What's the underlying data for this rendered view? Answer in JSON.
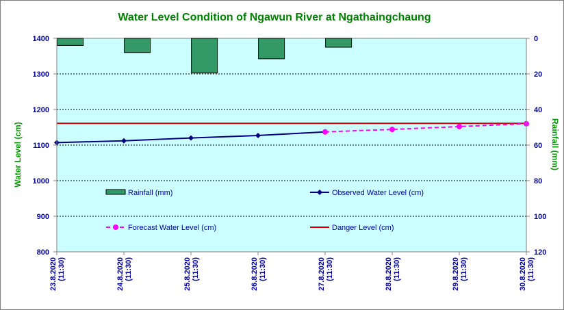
{
  "chart_data": {
    "type": "bar+line",
    "title": "Water Level Condition  of Ngawun River at  Ngathaingchaung",
    "ylabel_left": "Water Level (cm)",
    "ylabel_right": "Rainfall (mm)",
    "ylim_left": [
      800,
      1400
    ],
    "yticks_left": [
      "800",
      "900",
      "1000",
      "1100",
      "1200",
      "1300",
      "1400"
    ],
    "ylim_right_inverted": [
      0,
      120
    ],
    "yticks_right": [
      "0",
      "20",
      "40",
      "60",
      "80",
      "100",
      "120"
    ],
    "categories": [
      "23.8.2020\n(11:30)",
      "24.8.2020\n(11:30)",
      "25.8.2020\n(11:30)",
      "26.8.2020\n(11:30)",
      "27.8.2020\n(11:30)",
      "28.8.2020\n(11:30)",
      "29.8.2020\n(11:30)",
      "30.8.2020\n(11:30)"
    ],
    "grid": true,
    "series": [
      {
        "name": "Rainfall (mm)",
        "kind": "bar",
        "axis": "right",
        "color": "#339966",
        "values": [
          4,
          8,
          19.5,
          11.5,
          5,
          null,
          null,
          null
        ]
      },
      {
        "name": "Observed Water Level (cm)",
        "kind": "line",
        "axis": "left",
        "color": "#000080",
        "marker": "diamond",
        "values": [
          1107,
          1112,
          1120,
          1127,
          1137,
          null,
          null,
          null
        ]
      },
      {
        "name": "Forecast Water Level (cm)",
        "kind": "line-dashed",
        "axis": "left",
        "color": "#ff00ff",
        "marker": "circle",
        "values": [
          null,
          null,
          null,
          null,
          1137,
          1144,
          1152,
          1160
        ]
      },
      {
        "name": "Danger Level (cm)",
        "kind": "hline",
        "axis": "left",
        "color": "#cc0000",
        "value": 1161
      }
    ],
    "colors": {
      "plot_background": "#ccffff",
      "title": "#008000",
      "axis_title": "#009900",
      "tick_text": "#0000a0"
    }
  }
}
